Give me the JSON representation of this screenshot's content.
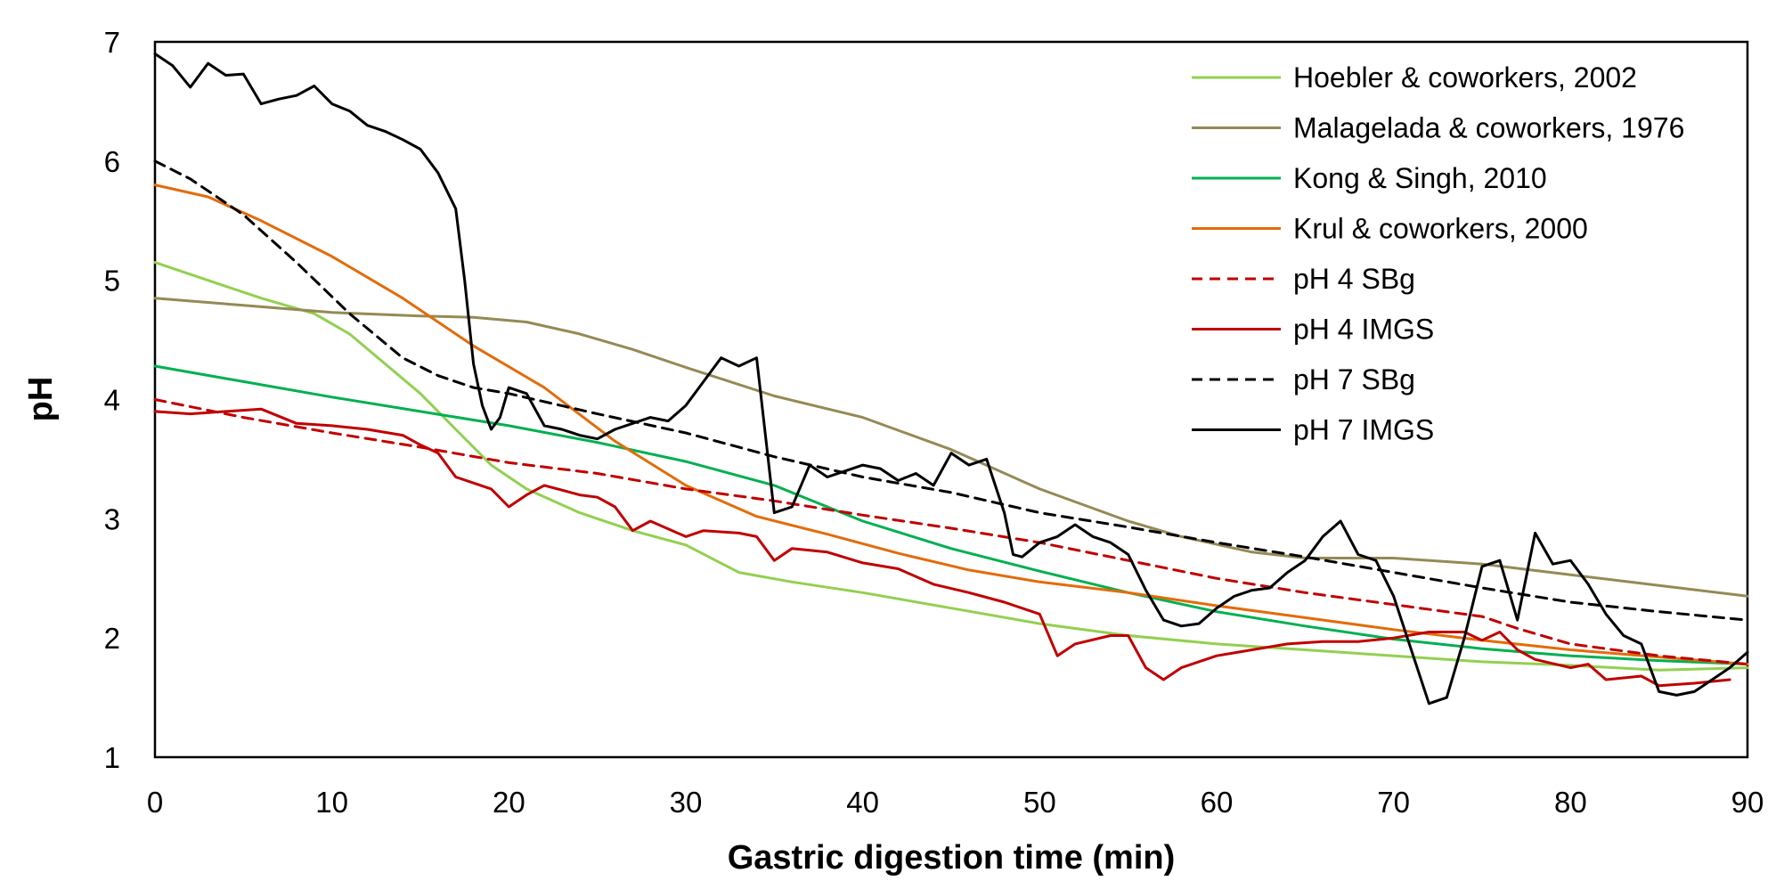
{
  "chart_data": {
    "type": "line",
    "title": "",
    "xlabel": "Gastric digestion time (min)",
    "ylabel": "pH",
    "xlim": [
      0,
      90
    ],
    "ylim": [
      1,
      7
    ],
    "xticks": [
      0,
      10,
      20,
      30,
      40,
      50,
      60,
      70,
      80,
      90
    ],
    "yticks": [
      1,
      2,
      3,
      4,
      5,
      6,
      7
    ],
    "grid": false,
    "legend_position": "top-right",
    "series": [
      {
        "name": "Hoebler & coworkers, 2002",
        "color": "#92D050",
        "dash": "solid",
        "points": [
          [
            0,
            5.15
          ],
          [
            3,
            5.0
          ],
          [
            6,
            4.85
          ],
          [
            9,
            4.72
          ],
          [
            11,
            4.55
          ],
          [
            13,
            4.3
          ],
          [
            15,
            4.05
          ],
          [
            17,
            3.75
          ],
          [
            19,
            3.45
          ],
          [
            21,
            3.25
          ],
          [
            24,
            3.05
          ],
          [
            27,
            2.9
          ],
          [
            30,
            2.78
          ],
          [
            33,
            2.55
          ],
          [
            36,
            2.47
          ],
          [
            40,
            2.38
          ],
          [
            45,
            2.25
          ],
          [
            50,
            2.12
          ],
          [
            55,
            2.02
          ],
          [
            60,
            1.95
          ],
          [
            65,
            1.9
          ],
          [
            70,
            1.85
          ],
          [
            75,
            1.8
          ],
          [
            80,
            1.77
          ],
          [
            85,
            1.73
          ],
          [
            90,
            1.75
          ]
        ]
      },
      {
        "name": "Malagelada & coworkers, 1976",
        "color": "#948A54",
        "dash": "solid",
        "points": [
          [
            0,
            4.85
          ],
          [
            5,
            4.79
          ],
          [
            10,
            4.73
          ],
          [
            15,
            4.7
          ],
          [
            18,
            4.69
          ],
          [
            21,
            4.65
          ],
          [
            24,
            4.55
          ],
          [
            27,
            4.42
          ],
          [
            30,
            4.27
          ],
          [
            35,
            4.03
          ],
          [
            40,
            3.85
          ],
          [
            45,
            3.58
          ],
          [
            50,
            3.25
          ],
          [
            55,
            2.98
          ],
          [
            58,
            2.85
          ],
          [
            62,
            2.72
          ],
          [
            65,
            2.67
          ],
          [
            70,
            2.67
          ],
          [
            75,
            2.62
          ],
          [
            80,
            2.53
          ],
          [
            85,
            2.44
          ],
          [
            90,
            2.35
          ]
        ]
      },
      {
        "name": "Kong & Singh, 2010",
        "color": "#00B050",
        "dash": "solid",
        "points": [
          [
            0,
            4.28
          ],
          [
            5,
            4.15
          ],
          [
            10,
            4.02
          ],
          [
            15,
            3.9
          ],
          [
            20,
            3.78
          ],
          [
            25,
            3.64
          ],
          [
            30,
            3.48
          ],
          [
            35,
            3.28
          ],
          [
            38,
            3.1
          ],
          [
            40,
            2.98
          ],
          [
            45,
            2.75
          ],
          [
            50,
            2.56
          ],
          [
            55,
            2.38
          ],
          [
            60,
            2.22
          ],
          [
            65,
            2.1
          ],
          [
            70,
            1.99
          ],
          [
            75,
            1.91
          ],
          [
            80,
            1.85
          ],
          [
            85,
            1.81
          ],
          [
            90,
            1.78
          ]
        ]
      },
      {
        "name": "Krul & coworkers, 2000",
        "color": "#E36C0A",
        "dash": "solid",
        "points": [
          [
            0,
            5.8
          ],
          [
            3,
            5.7
          ],
          [
            6,
            5.5
          ],
          [
            10,
            5.2
          ],
          [
            14,
            4.85
          ],
          [
            18,
            4.45
          ],
          [
            22,
            4.1
          ],
          [
            26,
            3.65
          ],
          [
            30,
            3.28
          ],
          [
            34,
            3.02
          ],
          [
            38,
            2.87
          ],
          [
            42,
            2.71
          ],
          [
            46,
            2.57
          ],
          [
            50,
            2.47
          ],
          [
            55,
            2.38
          ],
          [
            60,
            2.27
          ],
          [
            65,
            2.17
          ],
          [
            70,
            2.07
          ],
          [
            75,
            1.98
          ],
          [
            80,
            1.9
          ],
          [
            85,
            1.84
          ],
          [
            90,
            1.78
          ]
        ]
      },
      {
        "name": "pH 4 SBg",
        "color": "#C00000",
        "dash": "dashed",
        "points": [
          [
            0,
            4.0
          ],
          [
            5,
            3.85
          ],
          [
            10,
            3.72
          ],
          [
            15,
            3.6
          ],
          [
            20,
            3.47
          ],
          [
            25,
            3.38
          ],
          [
            30,
            3.25
          ],
          [
            35,
            3.15
          ],
          [
            40,
            3.03
          ],
          [
            45,
            2.92
          ],
          [
            50,
            2.8
          ],
          [
            55,
            2.65
          ],
          [
            60,
            2.5
          ],
          [
            65,
            2.38
          ],
          [
            70,
            2.28
          ],
          [
            75,
            2.18
          ],
          [
            77,
            2.08
          ],
          [
            80,
            1.95
          ],
          [
            85,
            1.85
          ],
          [
            90,
            1.78
          ]
        ]
      },
      {
        "name": "pH 4 IMGS",
        "color": "#C00000",
        "dash": "solid",
        "points": [
          [
            0,
            3.9
          ],
          [
            2,
            3.88
          ],
          [
            4,
            3.9
          ],
          [
            6,
            3.92
          ],
          [
            8,
            3.8
          ],
          [
            10,
            3.78
          ],
          [
            12,
            3.75
          ],
          [
            14,
            3.7
          ],
          [
            15,
            3.62
          ],
          [
            16,
            3.55
          ],
          [
            17,
            3.35
          ],
          [
            18,
            3.3
          ],
          [
            19,
            3.25
          ],
          [
            20,
            3.1
          ],
          [
            21,
            3.2
          ],
          [
            22,
            3.28
          ],
          [
            24,
            3.2
          ],
          [
            25,
            3.18
          ],
          [
            26,
            3.1
          ],
          [
            27,
            2.9
          ],
          [
            28,
            2.98
          ],
          [
            30,
            2.85
          ],
          [
            31,
            2.9
          ],
          [
            33,
            2.88
          ],
          [
            34,
            2.85
          ],
          [
            35,
            2.65
          ],
          [
            36,
            2.75
          ],
          [
            38,
            2.72
          ],
          [
            40,
            2.63
          ],
          [
            42,
            2.58
          ],
          [
            44,
            2.45
          ],
          [
            46,
            2.38
          ],
          [
            48,
            2.3
          ],
          [
            50,
            2.2
          ],
          [
            51,
            1.85
          ],
          [
            52,
            1.95
          ],
          [
            54,
            2.02
          ],
          [
            55,
            2.02
          ],
          [
            56,
            1.75
          ],
          [
            57,
            1.65
          ],
          [
            58,
            1.75
          ],
          [
            60,
            1.85
          ],
          [
            62,
            1.9
          ],
          [
            64,
            1.95
          ],
          [
            66,
            1.97
          ],
          [
            68,
            1.97
          ],
          [
            70,
            2.0
          ],
          [
            72,
            2.05
          ],
          [
            74,
            2.05
          ],
          [
            75,
            1.98
          ],
          [
            76,
            2.05
          ],
          [
            77,
            1.9
          ],
          [
            78,
            1.82
          ],
          [
            80,
            1.75
          ],
          [
            81,
            1.78
          ],
          [
            82,
            1.65
          ],
          [
            84,
            1.68
          ],
          [
            85,
            1.6
          ],
          [
            87,
            1.62
          ],
          [
            89,
            1.65
          ]
        ]
      },
      {
        "name": "pH 7 SBg",
        "color": "#000000",
        "dash": "dashed",
        "points": [
          [
            0,
            6.0
          ],
          [
            2,
            5.85
          ],
          [
            5,
            5.55
          ],
          [
            8,
            5.15
          ],
          [
            11,
            4.72
          ],
          [
            14,
            4.35
          ],
          [
            16,
            4.2
          ],
          [
            18,
            4.1
          ],
          [
            20,
            4.05
          ],
          [
            25,
            3.88
          ],
          [
            30,
            3.72
          ],
          [
            35,
            3.52
          ],
          [
            40,
            3.35
          ],
          [
            45,
            3.22
          ],
          [
            50,
            3.05
          ],
          [
            55,
            2.93
          ],
          [
            60,
            2.8
          ],
          [
            65,
            2.68
          ],
          [
            70,
            2.55
          ],
          [
            75,
            2.42
          ],
          [
            80,
            2.3
          ],
          [
            85,
            2.22
          ],
          [
            90,
            2.15
          ]
        ]
      },
      {
        "name": "pH 7 IMGS",
        "color": "#000000",
        "dash": "solid",
        "points": [
          [
            0,
            6.9
          ],
          [
            1,
            6.8
          ],
          [
            2,
            6.62
          ],
          [
            3,
            6.82
          ],
          [
            4,
            6.72
          ],
          [
            5,
            6.73
          ],
          [
            6,
            6.48
          ],
          [
            7,
            6.52
          ],
          [
            8,
            6.55
          ],
          [
            9,
            6.63
          ],
          [
            10,
            6.48
          ],
          [
            11,
            6.42
          ],
          [
            12,
            6.3
          ],
          [
            13,
            6.25
          ],
          [
            14,
            6.18
          ],
          [
            15,
            6.1
          ],
          [
            16,
            5.9
          ],
          [
            17,
            5.6
          ],
          [
            17.5,
            5.0
          ],
          [
            18,
            4.3
          ],
          [
            18.5,
            3.95
          ],
          [
            19,
            3.75
          ],
          [
            19.5,
            3.85
          ],
          [
            20,
            4.1
          ],
          [
            21,
            4.05
          ],
          [
            22,
            3.78
          ],
          [
            23,
            3.75
          ],
          [
            24,
            3.7
          ],
          [
            25,
            3.67
          ],
          [
            26,
            3.75
          ],
          [
            27,
            3.8
          ],
          [
            28,
            3.85
          ],
          [
            29,
            3.82
          ],
          [
            30,
            3.95
          ],
          [
            31,
            4.15
          ],
          [
            32,
            4.35
          ],
          [
            33,
            4.28
          ],
          [
            34,
            4.35
          ],
          [
            34.5,
            3.7
          ],
          [
            35,
            3.05
          ],
          [
            36,
            3.1
          ],
          [
            37,
            3.45
          ],
          [
            38,
            3.35
          ],
          [
            39,
            3.4
          ],
          [
            40,
            3.45
          ],
          [
            41,
            3.42
          ],
          [
            42,
            3.32
          ],
          [
            43,
            3.38
          ],
          [
            44,
            3.28
          ],
          [
            45,
            3.55
          ],
          [
            46,
            3.45
          ],
          [
            47,
            3.5
          ],
          [
            48,
            3.05
          ],
          [
            48.5,
            2.7
          ],
          [
            49,
            2.68
          ],
          [
            50,
            2.8
          ],
          [
            51,
            2.85
          ],
          [
            52,
            2.95
          ],
          [
            53,
            2.85
          ],
          [
            54,
            2.8
          ],
          [
            55,
            2.7
          ],
          [
            56,
            2.4
          ],
          [
            57,
            2.15
          ],
          [
            58,
            2.1
          ],
          [
            59,
            2.12
          ],
          [
            60,
            2.25
          ],
          [
            61,
            2.35
          ],
          [
            62,
            2.4
          ],
          [
            63,
            2.42
          ],
          [
            64,
            2.55
          ],
          [
            65,
            2.65
          ],
          [
            66,
            2.85
          ],
          [
            67,
            2.98
          ],
          [
            68,
            2.7
          ],
          [
            69,
            2.65
          ],
          [
            70,
            2.35
          ],
          [
            71,
            1.9
          ],
          [
            72,
            1.45
          ],
          [
            73,
            1.5
          ],
          [
            74,
            2.0
          ],
          [
            75,
            2.6
          ],
          [
            76,
            2.65
          ],
          [
            77,
            2.15
          ],
          [
            78,
            2.88
          ],
          [
            79,
            2.62
          ],
          [
            80,
            2.65
          ],
          [
            81,
            2.45
          ],
          [
            82,
            2.2
          ],
          [
            83,
            2.02
          ],
          [
            84,
            1.95
          ],
          [
            85,
            1.55
          ],
          [
            86,
            1.52
          ],
          [
            87,
            1.55
          ],
          [
            88,
            1.65
          ],
          [
            89,
            1.75
          ],
          [
            90,
            1.88
          ]
        ]
      }
    ]
  }
}
